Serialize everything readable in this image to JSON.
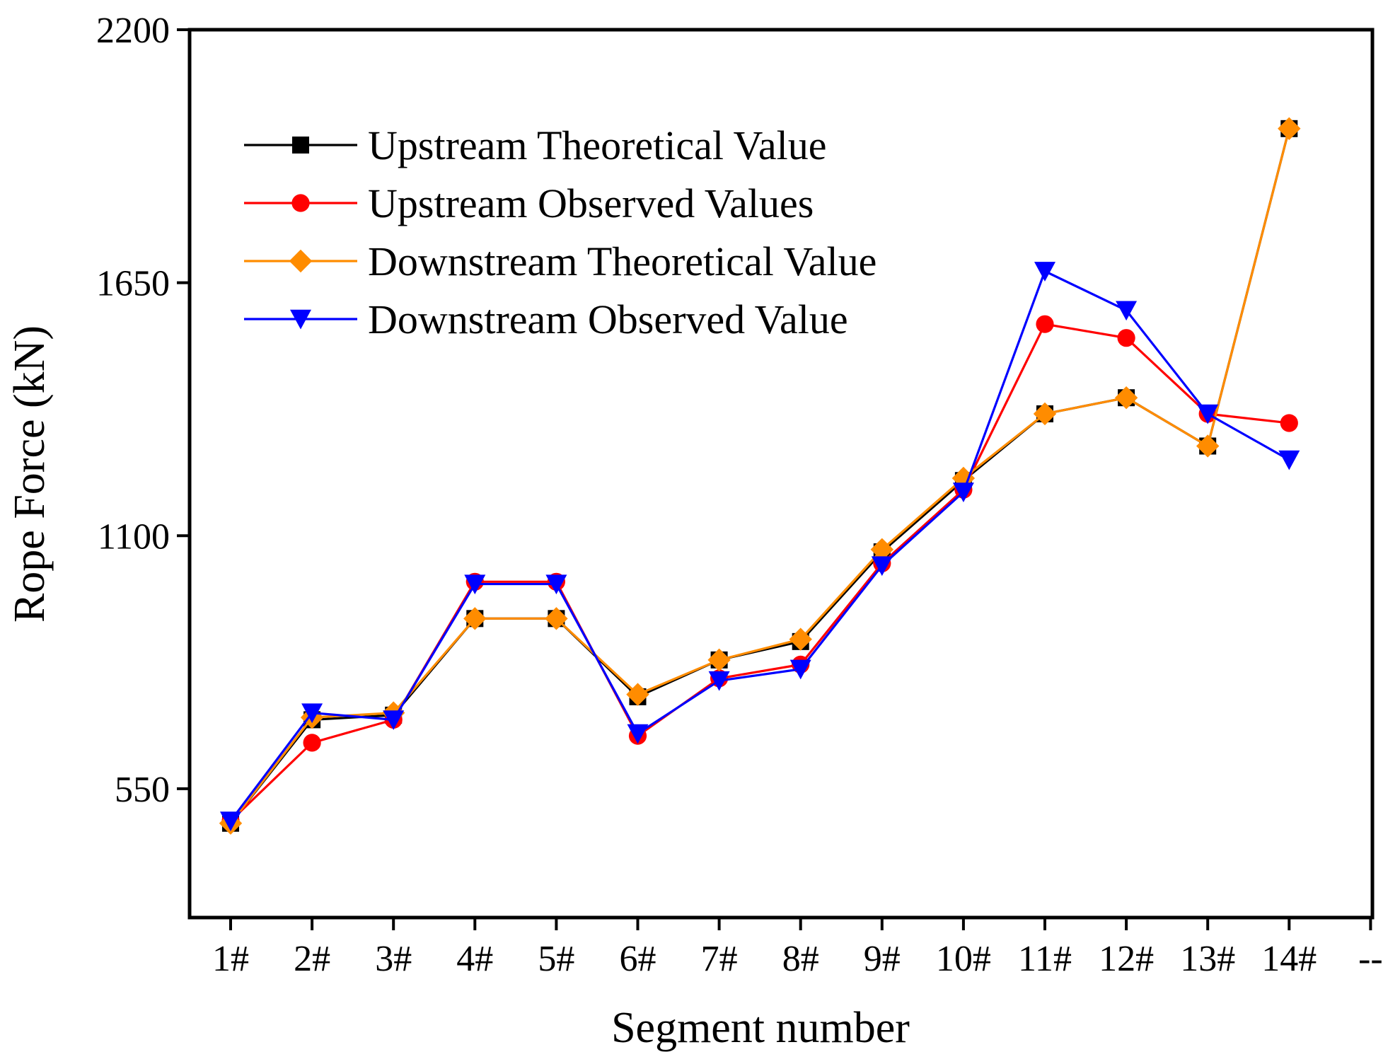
{
  "chart_data": {
    "type": "line",
    "title": "",
    "xlabel": "Segment number",
    "ylabel": "Rope Force (kN)",
    "categories": [
      "1#",
      "2#",
      "3#",
      "4#",
      "5#",
      "6#",
      "7#",
      "8#",
      "9#",
      "10#",
      "11#",
      "12#",
      "13#",
      "14#",
      "--"
    ],
    "yticks": [
      "550",
      "1100",
      "1650",
      "2200"
    ],
    "ylim": [
      270,
      2200
    ],
    "grid": false,
    "legend_position": "top-left",
    "series": [
      {
        "name": "Upstream Theoretical Value",
        "color": "#000000",
        "marker": "square",
        "values": [
          475,
          700,
          710,
          920,
          920,
          750,
          830,
          870,
          1065,
          1220,
          1365,
          1400,
          1295,
          1985,
          null
        ]
      },
      {
        "name": "Upstream Observed Values",
        "color": "#ff0000",
        "marker": "circle",
        "values": [
          480,
          650,
          700,
          1000,
          1000,
          665,
          790,
          820,
          1040,
          1200,
          1560,
          1530,
          1365,
          1345,
          null
        ]
      },
      {
        "name": "Downstream Theoretical Value",
        "color": "#ff8c00",
        "marker": "diamond",
        "values": [
          475,
          705,
          715,
          920,
          920,
          755,
          830,
          875,
          1070,
          1225,
          1365,
          1400,
          1295,
          1985,
          null
        ]
      },
      {
        "name": "Downstream Observed Value",
        "color": "#0000ff",
        "marker": "triangle-down",
        "values": [
          480,
          715,
          700,
          995,
          995,
          670,
          785,
          810,
          1035,
          1195,
          1675,
          1590,
          1365,
          1265,
          null
        ]
      }
    ]
  }
}
